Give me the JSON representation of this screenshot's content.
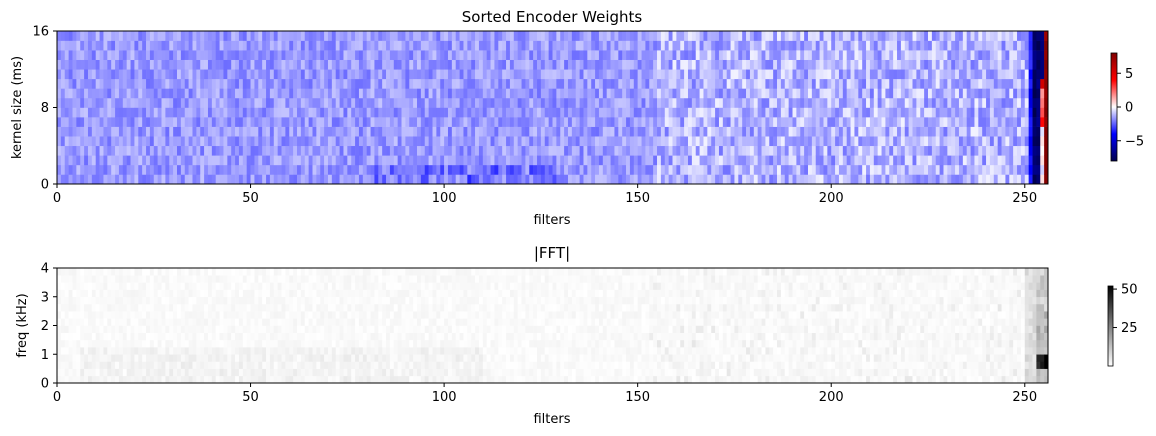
{
  "chart_data": [
    {
      "type": "heatmap",
      "title": "Sorted Encoder Weights",
      "xlabel": "filters",
      "ylabel": "kernel size (ms)",
      "xlim": [
        0,
        256
      ],
      "ylim": [
        0,
        16
      ],
      "xticks": [
        0,
        50,
        100,
        150,
        200,
        250
      ],
      "yticks": [
        0,
        8,
        16
      ],
      "colormap": "seismic",
      "colorbar": {
        "range": [
          -8,
          8
        ],
        "ticks": [
          -5,
          0,
          5
        ]
      },
      "grid": false,
      "summary": {
        "filters_0_155": "mostly weak negative values (light blue, about -1 to -2)",
        "filters_155_250": "weak mixed values (light blue to near zero)",
        "filters_251_253": "strong negative values (dark blue, about -7)",
        "filter_254": "mixed, strong negative at top, near zero in middle",
        "filter_255": "strong positive values (dark red, about +8)"
      }
    },
    {
      "type": "heatmap",
      "title": "|FFT|",
      "xlabel": "filters",
      "ylabel": "freq (kHz)",
      "xlim": [
        0,
        256
      ],
      "ylim": [
        0,
        4
      ],
      "xticks": [
        0,
        50,
        100,
        150,
        200,
        250
      ],
      "yticks": [
        0,
        1,
        2,
        3,
        4
      ],
      "colormap": "gray_r",
      "colorbar": {
        "range": [
          0,
          52
        ],
        "ticks": [
          25,
          50
        ]
      },
      "grid": false,
      "summary": {
        "filters_0_250": "near-zero magnitude (white to very light gray)",
        "filters_252_255": "high magnitude concentrated around 0.5-1 kHz (dark gray to black, about 40-52)"
      }
    }
  ]
}
